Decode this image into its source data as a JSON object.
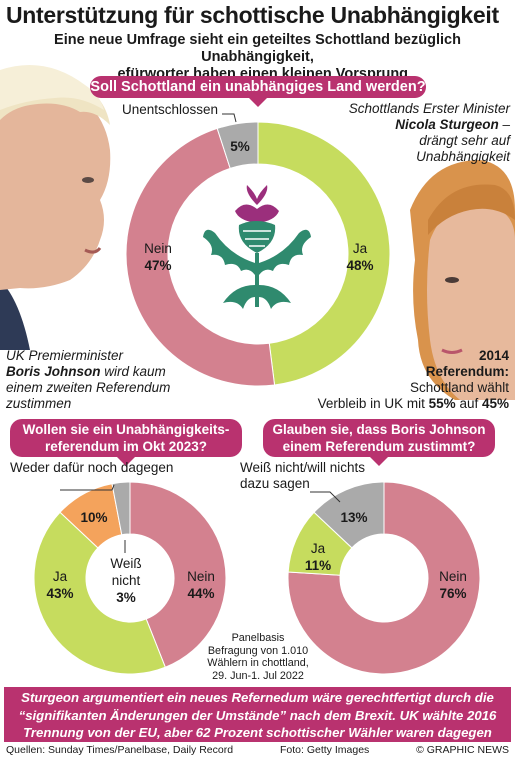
{
  "title": "Unterstützung für schottische Unabhängigkeit",
  "subtitle_line1": "Eine neue Umfrage sieht ein geteiltes Schottland bezüglich Unabhängigkeit,",
  "subtitle_line2": "Befürworter haben einen kleinen Vorsprung",
  "q1": "Soll Schottland ein unabhängiges Land werden?",
  "q2_line1": "Wollen sie ein Unabhängigkeits-",
  "q2_line2": "referendum im Okt 2023?",
  "q3_line1": "Glauben sie, dass Boris Johnson",
  "q3_line2": "einem Referendum zustimmt?",
  "sturgeon": {
    "line1": "Schottlands Erster Minister",
    "name": "Nicola Sturgeon",
    "dash": " –",
    "line3": "drängt sehr auf",
    "line4": "Unabhängigkeit"
  },
  "johnson": {
    "line1": "UK Premierminister",
    "name": "Boris Johnson",
    "rest": " wird kaum",
    "line3": "einem zweiten Referendum",
    "line4": "zustimmen"
  },
  "ref2014": {
    "year": "2014",
    "label": "Referendum:",
    "line3": "Schottland wählt",
    "pre": "Verbleib in UK mit ",
    "v1": "55%",
    "mid": " auf ",
    "v2": "45%"
  },
  "panel": {
    "line1": "Panelbasis",
    "line2": "Befragung von 1.010",
    "line3": "Wählern in chottland,",
    "line4": "29. Jun-1. Jul 2022"
  },
  "bottom": {
    "line1": "Sturgeon argumentiert ein neues Refernedum wäre gerechtfertigt durch die",
    "line2": "“signifikanten Änderungen der Umstände” nach dem Brexit. UK wählte 2016",
    "line3": "Trennung von der EU,  aber 62 Prozent schottischer Wähler waren dagegen"
  },
  "footer": {
    "sources": "Quellen: Sunday Times/Panelbase, Daily Record",
    "photo": "Foto: Getty Images",
    "brand": "© GRAPHIC NEWS"
  },
  "colors": {
    "ja": "#c6dc5e",
    "nein": "#d3818f",
    "undecided": "#aaaaaa",
    "neither": "#f4a35c",
    "accent": "#b9326f",
    "thistle_green": "#2f8a6e",
    "thistle_purple": "#9b2f7c"
  },
  "chart_data": [
    {
      "type": "pie",
      "title": "Soll Schottland ein unabhängiges Land werden?",
      "slices": [
        {
          "label": "Ja",
          "value": 48,
          "text": "48%",
          "color": "#c6dc5e"
        },
        {
          "label": "Nein",
          "value": 47,
          "text": "47%",
          "color": "#d3818f"
        },
        {
          "label": "Unentschlossen",
          "value": 5,
          "text": "5%",
          "color": "#aaaaaa"
        }
      ]
    },
    {
      "type": "pie",
      "title": "Wollen sie ein Unabhängigkeits-referendum im Okt 2023?",
      "slices": [
        {
          "label": "Nein",
          "value": 44,
          "text": "44%",
          "color": "#d3818f"
        },
        {
          "label": "Ja",
          "value": 43,
          "text": "43%",
          "color": "#c6dc5e"
        },
        {
          "label": "Weder dafür noch dagegen",
          "value": 10,
          "text": "10%",
          "color": "#f4a35c"
        },
        {
          "label": "Weiß nicht",
          "value": 3,
          "text": "3%",
          "color": "#aaaaaa"
        }
      ]
    },
    {
      "type": "pie",
      "title": "Glauben sie, dass Boris Johnson einem Referendum zustimmt?",
      "slices": [
        {
          "label": "Nein",
          "value": 76,
          "text": "76%",
          "color": "#d3818f"
        },
        {
          "label": "Ja",
          "value": 11,
          "text": "11%",
          "color": "#c6dc5e"
        },
        {
          "label": "Weiß nicht/will nichts dazu sagen",
          "value": 13,
          "text": "13%",
          "color": "#aaaaaa"
        }
      ]
    }
  ]
}
